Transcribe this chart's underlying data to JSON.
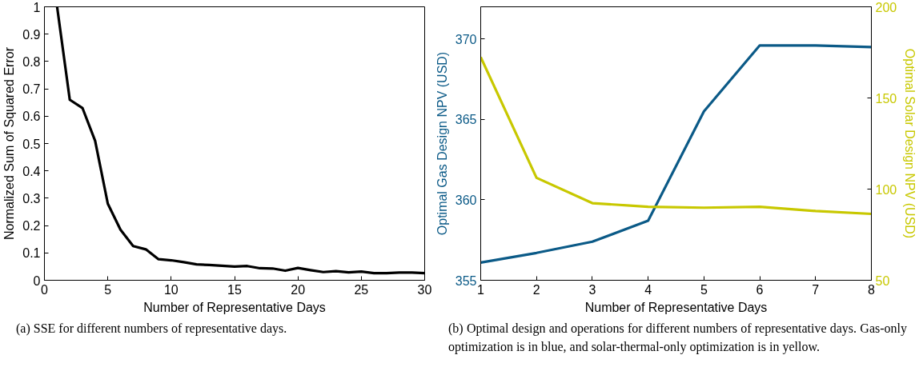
{
  "chart_data": [
    {
      "type": "line",
      "xlabel": "Number of Representative Days",
      "ylabel": "Normalized Sum of Squared Error",
      "xlim": [
        0,
        30
      ],
      "ylim": [
        0,
        1
      ],
      "xticks": [
        0,
        5,
        10,
        15,
        20,
        25,
        30
      ],
      "yticks": [
        0,
        0.1,
        0.2,
        0.3,
        0.4,
        0.5,
        0.6,
        0.7,
        0.8,
        0.9,
        1
      ],
      "grid": false,
      "x": [
        1,
        2,
        3,
        4,
        5,
        6,
        7,
        8,
        9,
        10,
        11,
        12,
        13,
        14,
        15,
        16,
        17,
        18,
        19,
        20,
        21,
        22,
        23,
        24,
        25,
        26,
        27,
        28,
        29,
        30
      ],
      "series": [
        {
          "color": "#000000",
          "values": [
            1.0,
            0.66,
            0.63,
            0.51,
            0.28,
            0.185,
            0.125,
            0.113,
            0.077,
            0.073,
            0.066,
            0.058,
            0.056,
            0.053,
            0.05,
            0.052,
            0.044,
            0.043,
            0.035,
            0.045,
            0.037,
            0.03,
            0.033,
            0.029,
            0.032,
            0.026,
            0.026,
            0.028,
            0.028,
            0.026
          ]
        }
      ],
      "annotations": [
        "(a)  SSE for different numbers of representative days."
      ]
    },
    {
      "type": "line",
      "xlabel": "Number of Representative Days",
      "ylabel": "Optimal Gas Design NPV (USD)",
      "y2label": "Optimal Solar Design NPV (USD)",
      "xlim": [
        1,
        8
      ],
      "ylim": [
        355,
        372
      ],
      "y2lim": [
        50,
        200
      ],
      "xticks": [
        1,
        2,
        3,
        4,
        5,
        6,
        7,
        8
      ],
      "yticks": [
        355,
        360,
        365,
        370
      ],
      "y2ticks": [
        50,
        100,
        150,
        200
      ],
      "grid": false,
      "x": [
        1,
        2,
        3,
        4,
        5,
        6,
        7,
        8
      ],
      "series": [
        {
          "color": "#0b5a87",
          "values": [
            356.1,
            356.7,
            357.4,
            358.7,
            365.5,
            369.6,
            369.6,
            369.5
          ]
        },
        {
          "color": "#c8c800",
          "axis": "y2",
          "values": [
            172.4,
            106.2,
            92.3,
            90.3,
            89.8,
            90.3,
            88.0,
            86.4
          ]
        }
      ],
      "annotations": [
        "(b)  Optimal design and operations for different numbers of representative days.  Gas-only optimization is in blue, and solar-thermal-only optimization is in yellow."
      ]
    }
  ]
}
